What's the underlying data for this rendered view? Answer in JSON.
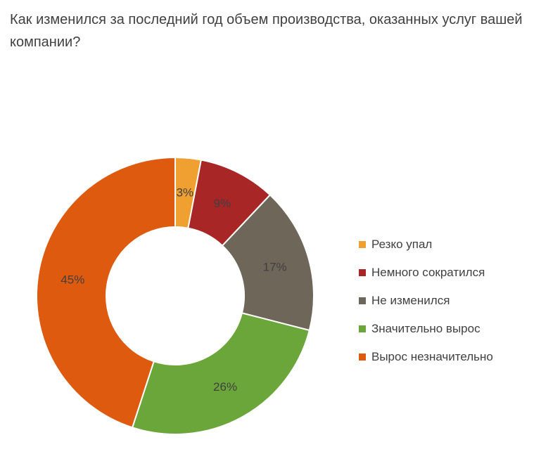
{
  "chart_data": {
    "type": "pie",
    "variant": "donut",
    "title": "Как изменился за последний год объем производства, оказанных услуг вашей компании?",
    "legend_position": "right",
    "slices": [
      {
        "label": "Резко упал",
        "value": 3,
        "value_label": "3%",
        "color": "#F0A030"
      },
      {
        "label": "Немного сократился",
        "value": 9,
        "value_label": "9%",
        "color": "#A82626"
      },
      {
        "label": "Не изменился",
        "value": 17,
        "value_label": "17%",
        "color": "#6E6659"
      },
      {
        "label": "Значительно вырос",
        "value": 26,
        "value_label": "26%",
        "color": "#6BA63A"
      },
      {
        "label": "Вырос незначительно",
        "value": 45,
        "value_label": "45%",
        "color": "#DE5A0F"
      }
    ]
  }
}
